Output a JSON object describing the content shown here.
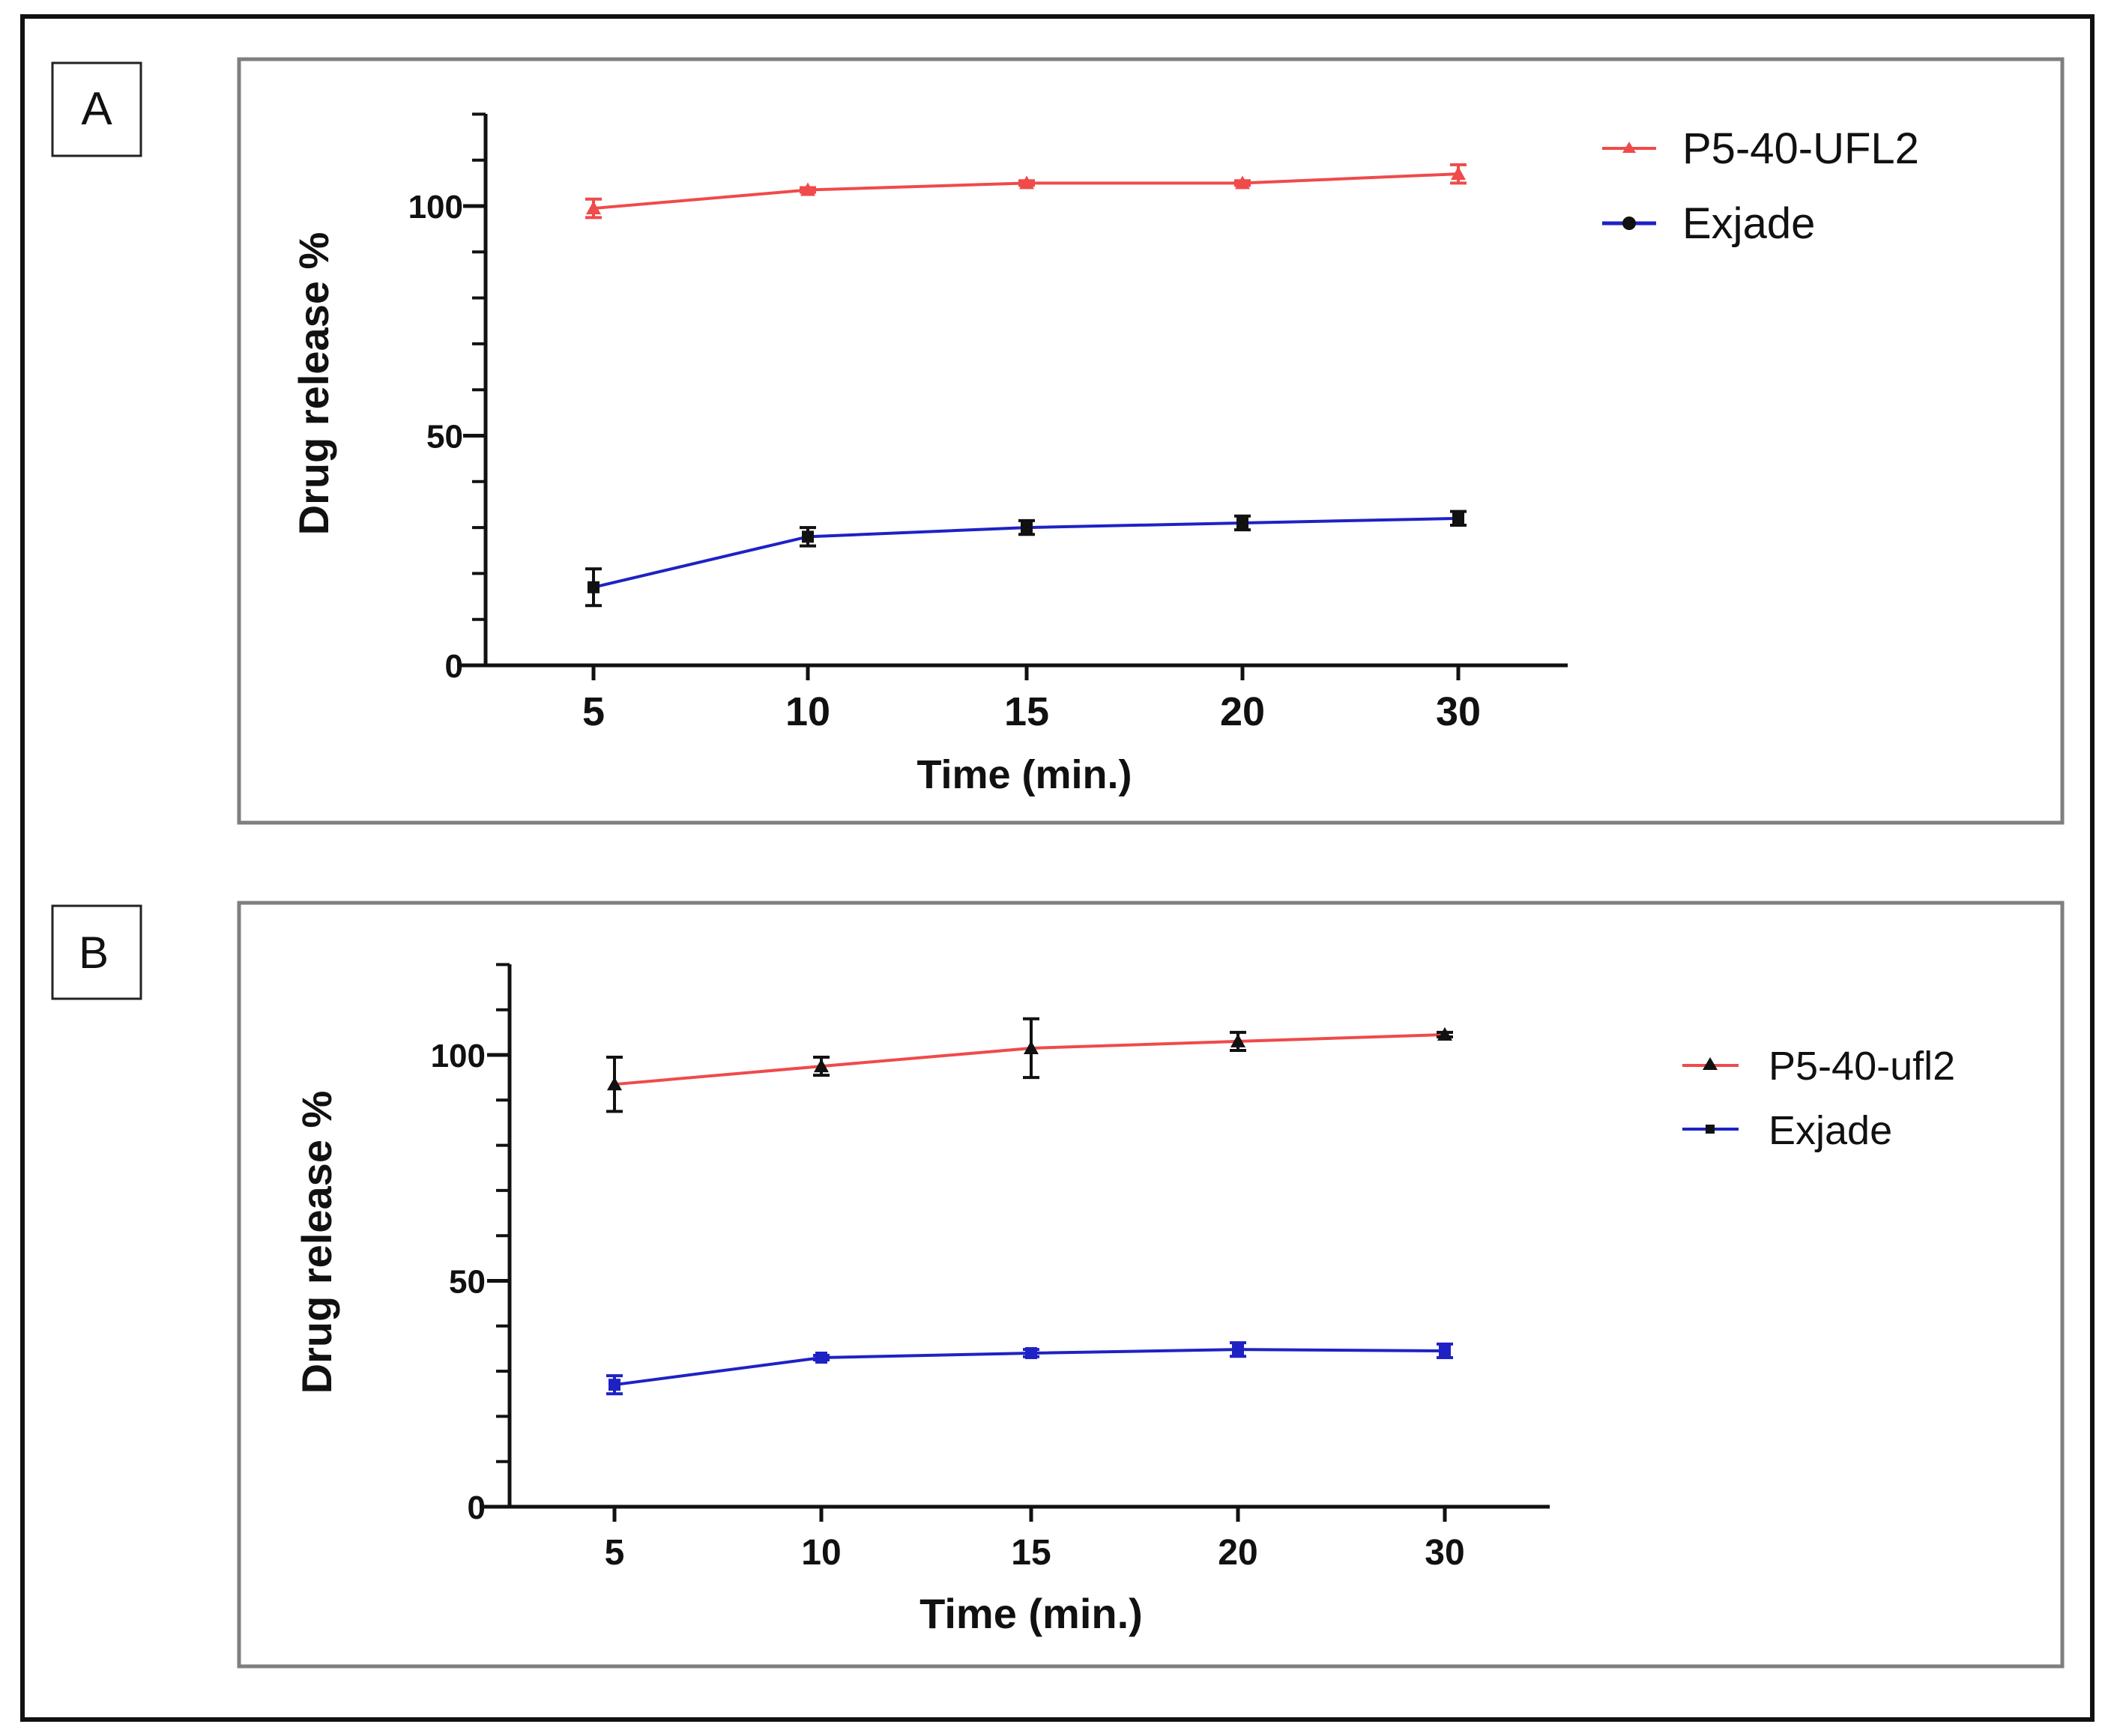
{
  "chart_data": [
    {
      "type": "line",
      "panel_label": "A",
      "title": "",
      "xlabel": "Time (min.)",
      "ylabel": "Drug release %",
      "categories": [
        "5",
        "10",
        "15",
        "20",
        "30"
      ],
      "ylim": [
        0,
        120
      ],
      "yticks": [
        "0",
        "50",
        "100"
      ],
      "legend_position": "top-right",
      "series": [
        {
          "name": "P5-40-UFL2",
          "color": "#f04a4a",
          "marker_color": "#f04a4a",
          "marker": "triangle",
          "values": [
            99.5,
            103.5,
            105,
            105,
            107
          ],
          "errors": [
            2,
            0.5,
            0.5,
            0.5,
            2
          ]
        },
        {
          "name": "Exjade",
          "color": "#1e22c4",
          "marker_color": "#111111",
          "marker": "square",
          "values": [
            17,
            28,
            30,
            31,
            32
          ],
          "errors": [
            4,
            2,
            1.5,
            1.5,
            1.5
          ]
        }
      ]
    },
    {
      "type": "line",
      "panel_label": "B",
      "title": "",
      "xlabel": "Time (min.)",
      "ylabel": "Drug release %",
      "categories": [
        "5",
        "10",
        "15",
        "20",
        "30"
      ],
      "ylim": [
        0,
        120
      ],
      "yticks": [
        "0",
        "50",
        "100"
      ],
      "legend_position": "right",
      "series": [
        {
          "name": "P5-40-ufl2",
          "color": "#f04a4a",
          "marker_color": "#111111",
          "marker": "triangle",
          "values": [
            93.5,
            97.5,
            101.5,
            103,
            104.5
          ],
          "errors": [
            6,
            2,
            6.5,
            2,
            0.5
          ]
        },
        {
          "name": "Exjade",
          "color": "#1e22c4",
          "marker_color": "#1e22c4",
          "marker": "square",
          "values": [
            27,
            33,
            34,
            34.8,
            34.5
          ],
          "errors": [
            2,
            0.5,
            0.8,
            1.5,
            1.5
          ]
        }
      ]
    }
  ]
}
